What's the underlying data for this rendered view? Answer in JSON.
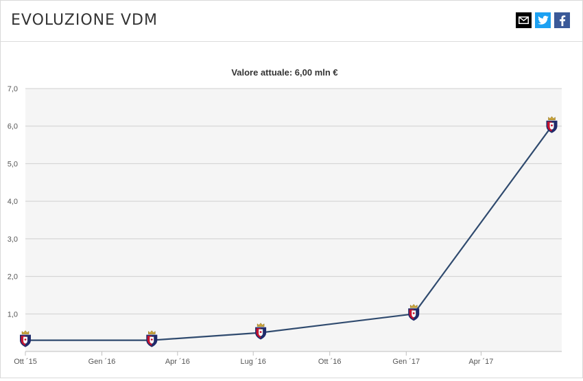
{
  "header": {
    "title": "EVOLUZIONE VDM",
    "share": [
      {
        "name": "email-share-button",
        "icon": "envelope-icon",
        "color": "#000000"
      },
      {
        "name": "twitter-share-button",
        "icon": "twitter-bird-icon",
        "color": "#1da1f2"
      },
      {
        "name": "facebook-share-button",
        "icon": "facebook-f-icon",
        "color": "#3b5998"
      }
    ]
  },
  "colors": {
    "line": "#2f4a6e",
    "grid": "#cfcfcf",
    "plot_bg": "#f5f5f5",
    "badge_red": "#c8102e",
    "badge_blue": "#1f2a6b",
    "crown": "#c9a43a"
  },
  "chart_data": {
    "type": "line",
    "title": "Valore attuale: 6,00 mln €",
    "xlabel": "",
    "ylabel": "",
    "ylim": [
      0,
      7
    ],
    "yticks": [
      {
        "value": 1,
        "label": "1,0"
      },
      {
        "value": 2,
        "label": "2,0"
      },
      {
        "value": 3,
        "label": "3,0"
      },
      {
        "value": 4,
        "label": "4,0"
      },
      {
        "value": 5,
        "label": "5,0"
      },
      {
        "value": 6,
        "label": "6,0"
      },
      {
        "value": 7,
        "label": "7,0"
      }
    ],
    "xlim": [
      "2015-10-01",
      "2017-07-07"
    ],
    "xticks": [
      {
        "date": "2015-10-01",
        "label": "Ott ´15"
      },
      {
        "date": "2016-01-01",
        "label": "Gen ´16"
      },
      {
        "date": "2016-04-01",
        "label": "Apr ´16"
      },
      {
        "date": "2016-07-01",
        "label": "Lug ´16"
      },
      {
        "date": "2016-10-01",
        "label": "Ott ´16"
      },
      {
        "date": "2017-01-01",
        "label": "Gen ´17"
      },
      {
        "date": "2017-04-01",
        "label": "Apr ´17"
      }
    ],
    "series": [
      {
        "points": [
          {
            "x": "2015-10-01",
            "y": 0.3
          },
          {
            "x": "2016-03-01",
            "y": 0.3
          },
          {
            "x": "2016-07-10",
            "y": 0.5
          },
          {
            "x": "2017-01-10",
            "y": 1.0
          },
          {
            "x": "2017-06-25",
            "y": 6.0
          }
        ]
      }
    ],
    "grid": true,
    "legend": "none"
  }
}
